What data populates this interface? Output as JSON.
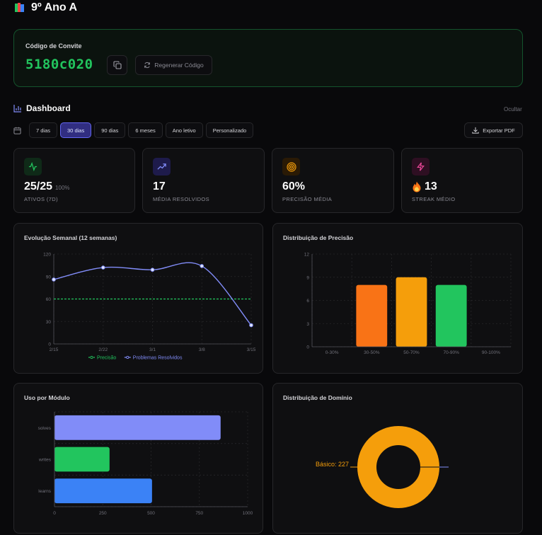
{
  "header": {
    "title": "9º Ano A",
    "icon": "books-icon"
  },
  "invite": {
    "label": "Código de Convite",
    "code": "5180c020",
    "regenerate_label": "Regenerar Código"
  },
  "dashboard": {
    "title": "Dashboard",
    "hide_label": "Ocultar",
    "ranges": [
      "7 dias",
      "30 dias",
      "90 dias",
      "6 meses",
      "Ano letivo",
      "Personalizado"
    ],
    "active_range": "30 dias",
    "export_label": "Exportar PDF"
  },
  "stats": [
    {
      "value": "25/25",
      "sub": "100%",
      "label": "ATIVOS (7D)",
      "icon": "activity-icon",
      "color": "#22c55e"
    },
    {
      "value": "17",
      "sub": "",
      "label": "MÉDIA RESOLVIDOS",
      "icon": "trending-up-icon",
      "color": "#818cf8"
    },
    {
      "value": "60%",
      "sub": "",
      "label": "PRECISÃO MÉDIA",
      "icon": "target-icon",
      "color": "#f59e0b"
    },
    {
      "value": "13",
      "sub": "",
      "label": "STREAK MÉDIO",
      "icon": "zap-icon",
      "color": "#ec4899",
      "prefix_icon": "fire-icon"
    }
  ],
  "colors": {
    "accent": "#6366f1",
    "green": "#22c55e",
    "orange": "#f97316",
    "amber": "#f59e0b",
    "indigo": "#818cf8",
    "blue": "#3b82f6"
  },
  "chart_data": [
    {
      "type": "line",
      "title": "Evolução Semanal (12 semanas)",
      "x": [
        "2/15",
        "2/22",
        "3/1",
        "3/8",
        "3/15"
      ],
      "ylim": [
        0,
        120
      ],
      "yticks": [
        0,
        30,
        60,
        90,
        120
      ],
      "series": [
        {
          "name": "Precisão",
          "values": [
            60,
            60,
            60,
            60,
            60
          ],
          "style": "dashed",
          "color": "#22c55e"
        },
        {
          "name": "Problemas Resolvidos",
          "values": [
            86,
            102,
            99,
            104,
            25
          ],
          "style": "solid",
          "color": "#818cf8"
        }
      ],
      "legend": "bottom"
    },
    {
      "type": "bar",
      "title": "Distribuição de Precisão",
      "categories": [
        "0-30%",
        "30-50%",
        "50-70%",
        "70-90%",
        "90-100%"
      ],
      "values": [
        0,
        8,
        9,
        8,
        0
      ],
      "bar_colors": [
        "#ef4444",
        "#f97316",
        "#f59e0b",
        "#22c55e",
        "#3b82f6"
      ],
      "ylim": [
        0,
        12
      ],
      "yticks": [
        0,
        3,
        6,
        9,
        12
      ]
    },
    {
      "type": "bar",
      "orientation": "horizontal",
      "title": "Uso por Módulo",
      "categories": [
        "solves",
        "writes",
        "learns"
      ],
      "values": [
        860,
        285,
        505
      ],
      "bar_colors": [
        "#818cf8",
        "#22c55e",
        "#3b82f6"
      ],
      "xlim": [
        0,
        1000
      ],
      "xticks": [
        0,
        250,
        500,
        750,
        1000
      ]
    },
    {
      "type": "pie",
      "title": "Distribuição de Domínio",
      "labels": [
        "Básico"
      ],
      "values": [
        227
      ],
      "label_text": "Básico: 227",
      "colors": [
        "#f59e0b"
      ]
    }
  ]
}
